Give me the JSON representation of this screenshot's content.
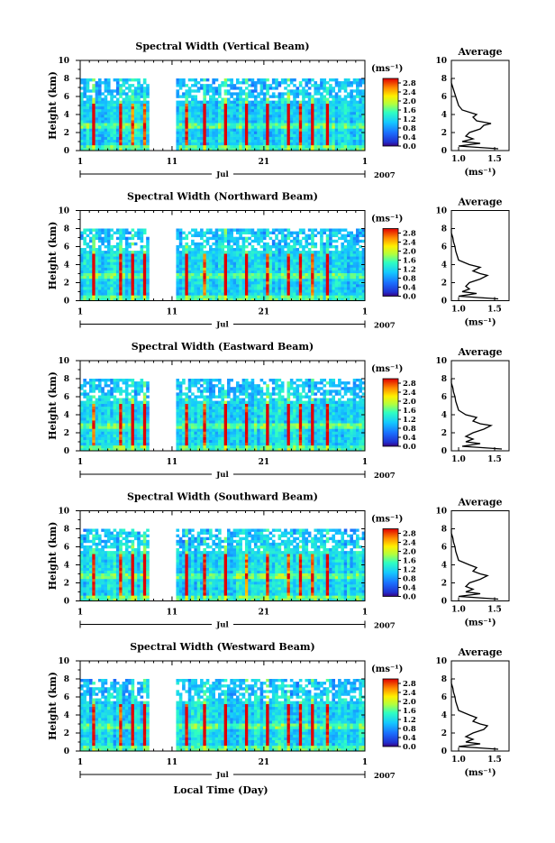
{
  "figure": {
    "x_axis_title": "Local Time (Day)",
    "month_label": "Jul",
    "year_label": "2007"
  },
  "chart_data": [
    {
      "type": "heatmap",
      "title": "Spectral Width (Vertical Beam)",
      "ylabel": "Height (km)",
      "ylim": [
        0,
        10
      ],
      "y_ticks": [
        "0",
        "2",
        "4",
        "6",
        "8",
        "10"
      ],
      "x_ticks": [
        "1",
        "11",
        "21",
        "1"
      ],
      "xlim": [
        1,
        32
      ],
      "data_gap_days": [
        8.8,
        11.3
      ],
      "colorbar": {
        "unit": "(ms⁻¹)",
        "ticks": [
          "0.0",
          "0.4",
          "0.8",
          "1.2",
          "1.6",
          "2.0",
          "2.4",
          "2.8"
        ],
        "range": [
          0,
          3.0
        ]
      },
      "average_profile": {
        "title": "Average",
        "xlabel": "(ms⁻¹)",
        "x_ticks": [
          "1.0",
          "1.5"
        ],
        "xlim": [
          0.9,
          1.7
        ],
        "ylim": [
          0,
          10
        ],
        "height_km": [
          0.2,
          0.5,
          0.8,
          1.0,
          1.3,
          1.6,
          2.0,
          2.4,
          2.8,
          3.0,
          3.3,
          3.7,
          4.0,
          4.5,
          5.0,
          5.5,
          6.0,
          6.5,
          7.0,
          7.5,
          8.0
        ],
        "width_ms": [
          1.55,
          1.0,
          1.3,
          1.05,
          1.2,
          1.1,
          1.15,
          1.3,
          1.35,
          1.45,
          1.25,
          1.2,
          1.25,
          1.05,
          1.0,
          0.98,
          0.96,
          0.94,
          0.92,
          0.9,
          0.9
        ]
      }
    },
    {
      "type": "heatmap",
      "title": "Spectral Width (Northward Beam)",
      "ylabel": "Height (km)",
      "ylim": [
        0,
        10
      ],
      "y_ticks": [
        "0",
        "2",
        "4",
        "6",
        "8",
        "10"
      ],
      "x_ticks": [
        "1",
        "11",
        "21",
        "1"
      ],
      "xlim": [
        1,
        32
      ],
      "data_gap_days": [
        8.8,
        11.3
      ],
      "colorbar": {
        "unit": "(ms⁻¹)",
        "ticks": [
          "0.0",
          "0.4",
          "0.8",
          "1.2",
          "1.6",
          "2.0",
          "2.4",
          "2.8"
        ],
        "range": [
          0,
          3.0
        ]
      },
      "average_profile": {
        "title": "Average",
        "xlabel": "(ms⁻¹)",
        "x_ticks": [
          "1.0",
          "1.5"
        ],
        "xlim": [
          0.9,
          1.7
        ],
        "ylim": [
          0,
          10
        ],
        "height_km": [
          0.2,
          0.5,
          0.8,
          1.0,
          1.3,
          1.6,
          2.0,
          2.4,
          2.8,
          3.0,
          3.3,
          3.7,
          4.0,
          4.5,
          5.0,
          5.5,
          6.0,
          6.5,
          7.0,
          7.5,
          8.0
        ],
        "width_ms": [
          1.55,
          1.0,
          1.25,
          1.05,
          1.15,
          1.1,
          1.15,
          1.3,
          1.4,
          1.3,
          1.2,
          1.3,
          1.15,
          1.0,
          0.98,
          0.96,
          0.95,
          0.93,
          0.92,
          0.9,
          0.9
        ]
      }
    },
    {
      "type": "heatmap",
      "title": "Spectral Width (Eastward Beam)",
      "ylabel": "Height (km)",
      "ylim": [
        0,
        10
      ],
      "y_ticks": [
        "0",
        "2",
        "4",
        "6",
        "8",
        "10"
      ],
      "x_ticks": [
        "1",
        "11",
        "21",
        "1"
      ],
      "xlim": [
        1,
        32
      ],
      "data_gap_days": [
        8.8,
        11.3
      ],
      "colorbar": {
        "unit": "(ms⁻¹)",
        "ticks": [
          "0.0",
          "0.4",
          "0.8",
          "1.2",
          "1.6",
          "2.0",
          "2.4",
          "2.8"
        ],
        "range": [
          0,
          3.0
        ]
      },
      "average_profile": {
        "title": "Average",
        "xlabel": "",
        "x_ticks": [
          "1.0",
          "1.5"
        ],
        "xlim": [
          0.9,
          1.7
        ],
        "ylim": [
          0,
          10
        ],
        "height_km": [
          0.2,
          0.5,
          0.8,
          1.0,
          1.3,
          1.6,
          2.0,
          2.4,
          2.8,
          3.0,
          3.3,
          3.7,
          4.0,
          4.5,
          5.0,
          5.5,
          6.0,
          6.5,
          7.0,
          7.5,
          8.0
        ],
        "width_ms": [
          1.6,
          1.05,
          1.3,
          1.1,
          1.2,
          1.1,
          1.2,
          1.35,
          1.45,
          1.3,
          1.2,
          1.25,
          1.1,
          1.0,
          0.98,
          0.96,
          0.95,
          0.93,
          0.92,
          0.9,
          0.9
        ]
      }
    },
    {
      "type": "heatmap",
      "title": "Spectral Width (Southward Beam)",
      "ylabel": "Height (km)",
      "ylim": [
        0,
        10
      ],
      "y_ticks": [
        "0",
        "2",
        "4",
        "6",
        "8",
        "10"
      ],
      "x_ticks": [
        "1",
        "11",
        "21",
        "1"
      ],
      "xlim": [
        1,
        32
      ],
      "data_gap_days": [
        8.8,
        11.3
      ],
      "colorbar": {
        "unit": "(ms⁻¹)",
        "ticks": [
          "0.0",
          "0.4",
          "0.8",
          "1.2",
          "1.6",
          "2.0",
          "2.4",
          "2.8"
        ],
        "range": [
          0,
          3.0
        ]
      },
      "average_profile": {
        "title": "Average",
        "xlabel": "(ms⁻¹)",
        "x_ticks": [
          "1.0",
          "1.5"
        ],
        "xlim": [
          0.9,
          1.7
        ],
        "ylim": [
          0,
          10
        ],
        "height_km": [
          0.2,
          0.5,
          0.8,
          1.0,
          1.3,
          1.6,
          2.0,
          2.4,
          2.8,
          3.0,
          3.3,
          3.7,
          4.0,
          4.5,
          5.0,
          5.5,
          6.0,
          6.5,
          7.0,
          7.5,
          8.0
        ],
        "width_ms": [
          1.55,
          1.0,
          1.3,
          1.1,
          1.2,
          1.1,
          1.15,
          1.3,
          1.4,
          1.3,
          1.2,
          1.25,
          1.15,
          1.0,
          0.98,
          0.96,
          0.95,
          0.93,
          0.92,
          0.9,
          0.9
        ]
      }
    },
    {
      "type": "heatmap",
      "title": "Spectral Width (Westward Beam)",
      "ylabel": "Height (km)",
      "ylim": [
        0,
        10
      ],
      "y_ticks": [
        "0",
        "2",
        "4",
        "6",
        "8",
        "10"
      ],
      "x_ticks": [
        "1",
        "11",
        "21",
        "1"
      ],
      "xlim": [
        1,
        32
      ],
      "data_gap_days": [
        8.8,
        11.3
      ],
      "colorbar": {
        "unit": "(ms⁻¹)",
        "ticks": [
          "0.0",
          "0.4",
          "0.8",
          "1.2",
          "1.6",
          "2.0",
          "2.4",
          "2.8"
        ],
        "range": [
          0,
          3.0
        ]
      },
      "average_profile": {
        "title": "Average",
        "xlabel": "(ms⁻¹)",
        "x_ticks": [
          "1.0",
          "1.5"
        ],
        "xlim": [
          0.9,
          1.7
        ],
        "ylim": [
          0,
          10
        ],
        "height_km": [
          0.2,
          0.5,
          0.8,
          1.0,
          1.3,
          1.6,
          2.0,
          2.4,
          2.8,
          3.0,
          3.3,
          3.7,
          4.0,
          4.5,
          5.0,
          5.5,
          6.0,
          6.5,
          7.0,
          7.5,
          8.0
        ],
        "width_ms": [
          1.55,
          1.0,
          1.3,
          1.1,
          1.2,
          1.1,
          1.2,
          1.35,
          1.4,
          1.3,
          1.2,
          1.25,
          1.15,
          1.0,
          0.98,
          0.96,
          0.95,
          0.93,
          0.92,
          0.9,
          0.9
        ]
      }
    }
  ]
}
